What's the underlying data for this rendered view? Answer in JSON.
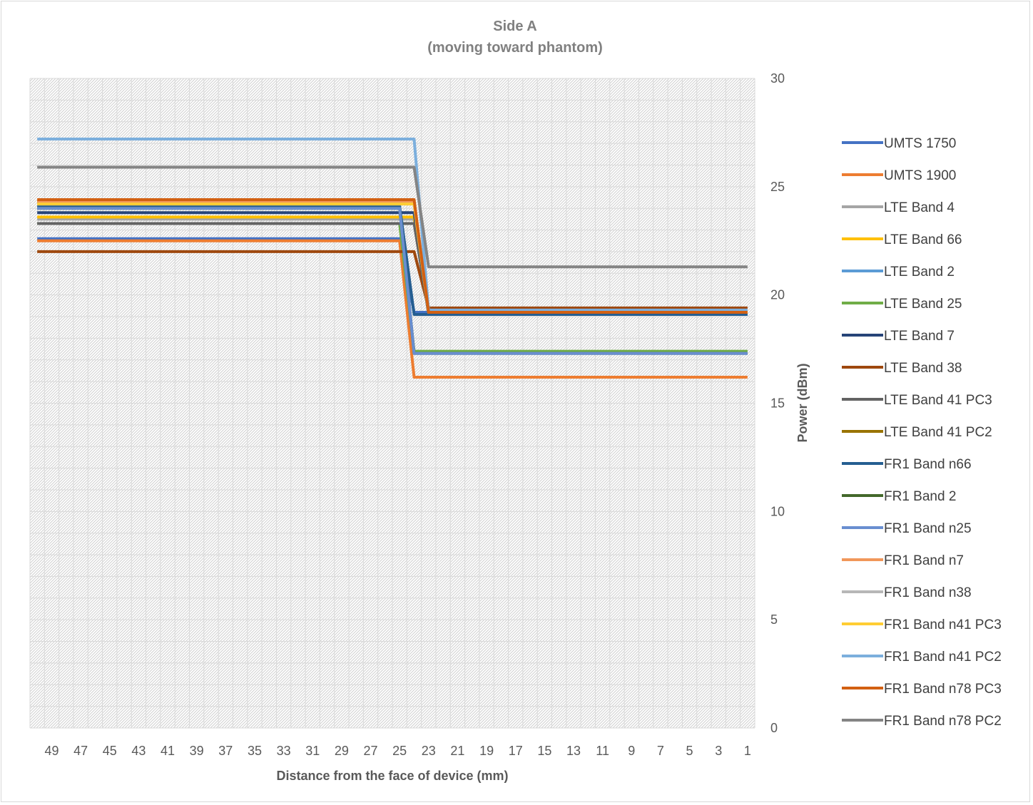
{
  "chart_data": {
    "type": "line",
    "title": "Side A",
    "subtitle": "(moving toward phantom)",
    "xlabel": "Distance from the face of device (mm)",
    "ylabel": "Power (dBm)",
    "x_direction": "reversed",
    "x_range": [
      50,
      1
    ],
    "ylim": [
      0,
      30
    ],
    "y_axis_position": "right",
    "grid": true,
    "legend_position": "right",
    "x_tick_labels": [
      "49",
      "47",
      "45",
      "43",
      "41",
      "39",
      "37",
      "35",
      "33",
      "31",
      "29",
      "27",
      "25",
      "23",
      "21",
      "19",
      "17",
      "15",
      "13",
      "11",
      "9",
      "7",
      "5",
      "3",
      "1"
    ],
    "y_tick_labels": [
      "0",
      "5",
      "10",
      "15",
      "20",
      "25",
      "30"
    ],
    "series": [
      {
        "name": "UMTS 1750",
        "color": "#4472c4",
        "high": 22.6,
        "low": 19.2,
        "switch": [
          25,
          24
        ]
      },
      {
        "name": "UMTS 1900",
        "color": "#ed7d31",
        "high": 22.5,
        "low": 16.2,
        "switch": [
          25,
          24
        ]
      },
      {
        "name": "LTE Band 4",
        "color": "#a5a5a5",
        "high": 23.5,
        "low": 19.2,
        "switch": [
          24,
          23
        ]
      },
      {
        "name": "LTE Band 66",
        "color": "#ffc000",
        "high": 23.6,
        "low": 19.2,
        "switch": [
          24,
          23
        ]
      },
      {
        "name": "LTE Band 2",
        "color": "#5b9bd5",
        "high": 24.1,
        "low": 17.3,
        "switch": [
          25,
          24
        ]
      },
      {
        "name": "LTE Band 25",
        "color": "#70ad47",
        "high": 23.3,
        "low": 17.4,
        "switch": [
          25,
          24
        ]
      },
      {
        "name": "LTE Band 7",
        "color": "#264478",
        "high": 23.8,
        "low": 19.1,
        "switch": [
          24,
          23
        ]
      },
      {
        "name": "LTE Band 38",
        "color": "#9e480e",
        "high": 22.0,
        "low": 19.4,
        "switch": [
          24,
          23
        ]
      },
      {
        "name": "LTE Band 41 PC3",
        "color": "#636363",
        "high": 23.3,
        "low": 19.2,
        "switch": [
          24,
          23
        ]
      },
      {
        "name": "LTE Band 41 PC2",
        "color": "#997300",
        "high": 24.3,
        "low": 19.2,
        "switch": [
          24,
          23
        ]
      },
      {
        "name": "FR1 Band n66",
        "color": "#255e91",
        "high": 24.1,
        "low": 19.1,
        "switch": [
          25,
          24
        ]
      },
      {
        "name": "FR1 Band 2",
        "color": "#43682b",
        "high": 24.0,
        "low": 17.3,
        "switch": [
          25,
          24
        ]
      },
      {
        "name": "FR1 Band n25",
        "color": "#698ed0",
        "high": 24.0,
        "low": 17.3,
        "switch": [
          25,
          24
        ]
      },
      {
        "name": "FR1 Band n7",
        "color": "#f1975a",
        "high": 24.3,
        "low": 19.2,
        "switch": [
          24,
          23
        ]
      },
      {
        "name": "FR1 Band n38",
        "color": "#b7b7b7",
        "high": 24.2,
        "low": 19.2,
        "switch": [
          24,
          23
        ]
      },
      {
        "name": "FR1 Band n41 PC3",
        "color": "#ffcd33",
        "high": 24.2,
        "low": 19.2,
        "switch": [
          24,
          23
        ]
      },
      {
        "name": "FR1 Band n41 PC2",
        "color": "#7cafdd",
        "high": 27.2,
        "low": 19.3,
        "switch": [
          24,
          23
        ]
      },
      {
        "name": "FR1 Band n78 PC3",
        "color": "#d26012",
        "high": 24.4,
        "low": 19.2,
        "switch": [
          24,
          23
        ]
      },
      {
        "name": "FR1 Band n78 PC2",
        "color": "#848484",
        "high": 25.9,
        "low": 21.3,
        "switch": [
          24,
          23
        ]
      }
    ]
  }
}
